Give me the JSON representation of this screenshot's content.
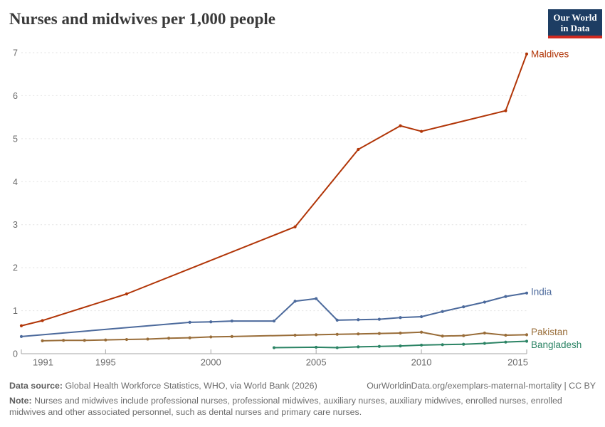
{
  "page": {
    "title": "Nurses and midwives per 1,000 people"
  },
  "logo": {
    "line1": "Our World",
    "line2": "in Data",
    "bg_color": "#1d3d63",
    "stripe_color": "#d02a20"
  },
  "footer": {
    "datasource_label": "Data source:",
    "datasource_text": "Global Health Workforce Statistics, WHO, via World Bank (2026)",
    "link_text": "OurWorldinData.org/exemplars-maternal-mortality | CC BY",
    "note_label": "Note:",
    "note_text": "Nurses and midwives include professional nurses, professional midwives, auxiliary nurses, auxiliary midwives, enrolled nurses, enrolled midwives and other associated personnel, such as dental nurses and primary care nurses."
  },
  "chart_data": {
    "type": "line",
    "title": "Nurses and midwives per 1,000 people",
    "xlabel": "",
    "ylabel": "",
    "xlim": [
      1991,
      2015
    ],
    "ylim": [
      0,
      7
    ],
    "x_ticks": [
      1991,
      1995,
      2000,
      2005,
      2010,
      2015
    ],
    "y_ticks": [
      0,
      1,
      2,
      3,
      4,
      5,
      6,
      7
    ],
    "grid": "horizontal-dashed",
    "legend_position": "right-end-of-line-labels",
    "axis_color": "#a6a6a6",
    "gridline_color": "#e2e2e2",
    "series": [
      {
        "name": "Maldives",
        "color": "#B13507",
        "label_dy": 0,
        "points": [
          [
            1991,
            0.65
          ],
          [
            1992,
            0.77
          ],
          [
            1996,
            1.39
          ],
          [
            2004,
            2.95
          ],
          [
            2007,
            4.75
          ],
          [
            2009,
            5.3
          ],
          [
            2010,
            5.17
          ],
          [
            2014,
            5.65
          ],
          [
            2015,
            6.97
          ]
        ]
      },
      {
        "name": "India",
        "color": "#4C6A9C",
        "label_dy": -2,
        "points": [
          [
            1991,
            0.4
          ],
          [
            1999,
            0.73
          ],
          [
            2000,
            0.74
          ],
          [
            2001,
            0.76
          ],
          [
            2003,
            0.76
          ],
          [
            2004,
            1.22
          ],
          [
            2005,
            1.28
          ],
          [
            2006,
            0.78
          ],
          [
            2007,
            0.79
          ],
          [
            2008,
            0.8
          ],
          [
            2009,
            0.84
          ],
          [
            2010,
            0.86
          ],
          [
            2011,
            0.98
          ],
          [
            2012,
            1.09
          ],
          [
            2013,
            1.2
          ],
          [
            2014,
            1.33
          ],
          [
            2015,
            1.41
          ]
        ]
      },
      {
        "name": "Pakistan",
        "color": "#996D39",
        "label_dy": -4,
        "points": [
          [
            1992,
            0.3
          ],
          [
            1993,
            0.31
          ],
          [
            1994,
            0.31
          ],
          [
            1995,
            0.32
          ],
          [
            1996,
            0.33
          ],
          [
            1997,
            0.34
          ],
          [
            1998,
            0.36
          ],
          [
            1999,
            0.37
          ],
          [
            2000,
            0.39
          ],
          [
            2001,
            0.4
          ],
          [
            2004,
            0.43
          ],
          [
            2005,
            0.44
          ],
          [
            2006,
            0.45
          ],
          [
            2007,
            0.46
          ],
          [
            2008,
            0.47
          ],
          [
            2009,
            0.48
          ],
          [
            2010,
            0.5
          ],
          [
            2011,
            0.41
          ],
          [
            2012,
            0.42
          ],
          [
            2013,
            0.48
          ],
          [
            2014,
            0.43
          ],
          [
            2015,
            0.44
          ]
        ]
      },
      {
        "name": "Bangladesh",
        "color": "#2C8465",
        "label_dy": 5,
        "points": [
          [
            2003,
            0.14
          ],
          [
            2005,
            0.15
          ],
          [
            2006,
            0.14
          ],
          [
            2007,
            0.16
          ],
          [
            2008,
            0.17
          ],
          [
            2009,
            0.18
          ],
          [
            2010,
            0.2
          ],
          [
            2011,
            0.21
          ],
          [
            2012,
            0.22
          ],
          [
            2013,
            0.24
          ],
          [
            2014,
            0.27
          ],
          [
            2015,
            0.29
          ]
        ]
      }
    ]
  }
}
